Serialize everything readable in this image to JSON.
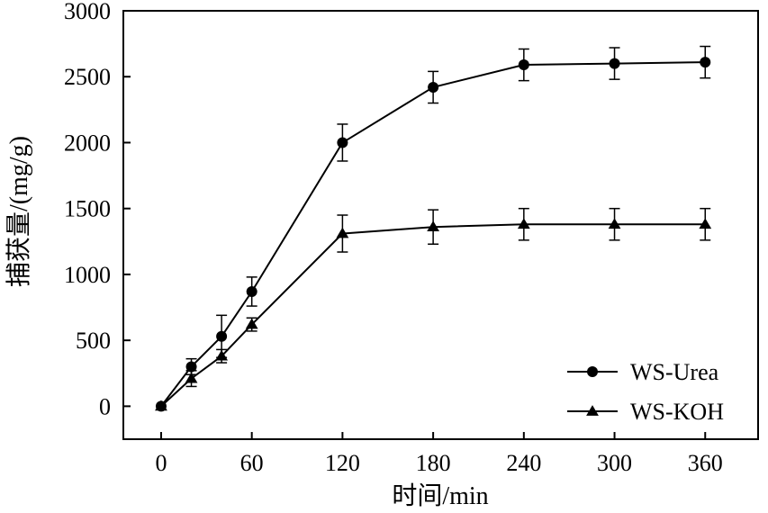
{
  "chart_data": {
    "type": "line",
    "xlabel": "时间/min",
    "ylabel": "捕获量/(mg/g)",
    "xlim": [
      -25,
      395
    ],
    "ylim": [
      -250,
      3000
    ],
    "x_ticks": [
      0,
      60,
      120,
      180,
      240,
      300,
      360
    ],
    "y_ticks": [
      0,
      500,
      1000,
      1500,
      2000,
      2500,
      3000
    ],
    "legend_position": "bottom-right",
    "series": [
      {
        "name": "WS-Urea",
        "marker": "circle",
        "x": [
          0,
          20,
          40,
          60,
          120,
          180,
          240,
          300,
          360
        ],
        "values": [
          0,
          300,
          530,
          870,
          2000,
          2420,
          2590,
          2600,
          2610
        ],
        "errors": [
          0,
          60,
          160,
          110,
          140,
          120,
          120,
          120,
          120
        ]
      },
      {
        "name": "WS-KOH",
        "marker": "triangle",
        "x": [
          0,
          20,
          40,
          60,
          120,
          180,
          240,
          300,
          360
        ],
        "values": [
          0,
          210,
          380,
          620,
          1310,
          1360,
          1380,
          1380,
          1380
        ],
        "errors": [
          0,
          60,
          50,
          50,
          140,
          130,
          120,
          120,
          120
        ]
      }
    ]
  }
}
